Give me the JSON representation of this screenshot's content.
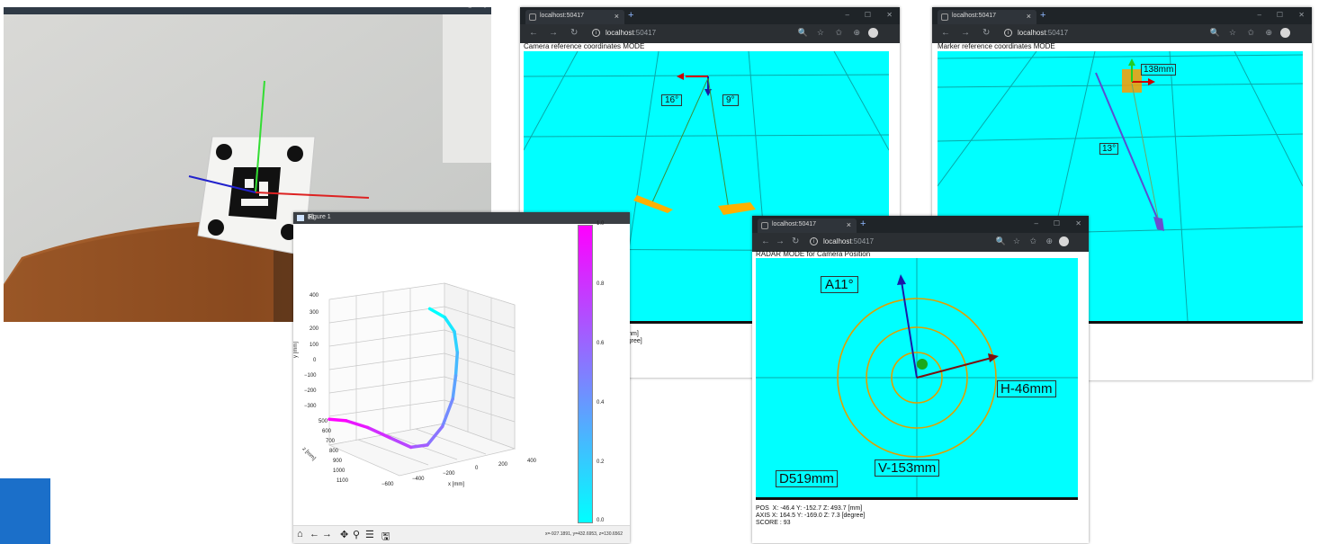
{
  "camera_photo": {
    "window_controls": [
      "–",
      "▫"
    ]
  },
  "figure": {
    "title": "Figure 1",
    "window_controls": [
      "–",
      "☐",
      "✕"
    ],
    "toolbar_icons": [
      "home-icon",
      "back-arrow-icon",
      "forward-arrow-icon",
      "pan-icon",
      "zoom-icon",
      "configure-subplots-icon",
      "save-icon"
    ],
    "toolbar_glyphs": [
      "⌂",
      "←",
      "→",
      "✥",
      "⚲",
      "☰",
      "🖫"
    ],
    "coord_readout": "x=-927.1891, y=432.6953, z=130.6562",
    "colorbar": {
      "ticks": [
        "1.0",
        "0.8",
        "0.6",
        "0.4",
        "0.2",
        "0.0"
      ],
      "colors": [
        "#ff00ff",
        "#00ffff"
      ]
    }
  },
  "chart_data": {
    "type": "line3d",
    "title": "",
    "xlabel": "x [mm]",
    "ylabel": "y [mm]",
    "zlabel": "z [mm]",
    "xticks": [
      "−600",
      "−400",
      "−200",
      "0",
      "200",
      "400"
    ],
    "yticks": [
      "400",
      "300",
      "200",
      "100",
      "0",
      "−100",
      "−200",
      "−300"
    ],
    "zticks": [
      "500",
      "600",
      "700",
      "800",
      "900",
      "1000",
      "1100"
    ],
    "series": [
      {
        "color_map": "cyan-to-magenta",
        "points": [
          {
            "x": -80,
            "y": 340,
            "z": 520
          },
          {
            "x": 40,
            "y": 300,
            "z": 540
          },
          {
            "x": 120,
            "y": 230,
            "z": 560
          },
          {
            "x": 160,
            "y": 130,
            "z": 600
          },
          {
            "x": 170,
            "y": 20,
            "z": 650
          },
          {
            "x": 170,
            "y": -90,
            "z": 700
          },
          {
            "x": 120,
            "y": -220,
            "z": 760
          },
          {
            "x": 40,
            "y": -300,
            "z": 830
          },
          {
            "x": -60,
            "y": -300,
            "z": 880
          },
          {
            "x": -200,
            "y": -240,
            "z": 920
          },
          {
            "x": -350,
            "y": -180,
            "z": 950
          },
          {
            "x": -500,
            "y": -140,
            "z": 970
          },
          {
            "x": -620,
            "y": -130,
            "z": 980
          }
        ]
      }
    ]
  },
  "browser_camera": {
    "tab_title": "localhost:50417",
    "url_host": "localhost",
    "url_port": ":50417",
    "mode_label": "Camera reference coordinates MODE",
    "angle_labels": [
      "16°",
      "9°"
    ],
    "status_fragment": ") [mm]\ndegree]"
  },
  "browser_marker": {
    "tab_title": "localhost:50417",
    "url_host": "localhost",
    "url_port": ":50417",
    "mode_label": "Marker reference coordinates MODE",
    "distance_label": "138mm",
    "angle_label": "13°"
  },
  "browser_radar": {
    "tab_title": "localhost:50417",
    "url_host": "localhost",
    "url_port": ":50417",
    "mode_label": "RADAR MODE for Camera Position",
    "labels": {
      "azimuth": "A11°",
      "horizontal": "H-46mm",
      "vertical": "V-153mm",
      "distance": "D519mm"
    },
    "status": {
      "pos": "POS  X: -46.4 Y: -152.7 Z: 493.7 [mm]",
      "axis": "AXIS X: 164.5 Y: -169.0 Z: 7.3 [degree]",
      "score": "SCORE : 93"
    }
  },
  "browser_common": {
    "nav_glyphs": [
      "←",
      "→",
      "↻"
    ],
    "info_glyph": "i",
    "tab_close": "×",
    "tab_plus": "+",
    "window_controls": [
      "–",
      "☐",
      "✕"
    ],
    "tools": [
      "🔍",
      "☆",
      "✩",
      "⊕"
    ]
  },
  "colors": {
    "canvas": "#00ffff",
    "axis_red": "#cc0000",
    "axis_green": "#22cc22",
    "axis_blue": "#1a1aa8",
    "ring": "#e0a000",
    "paddle": "#ffb000",
    "tile_accent": "#1b6fc9"
  }
}
